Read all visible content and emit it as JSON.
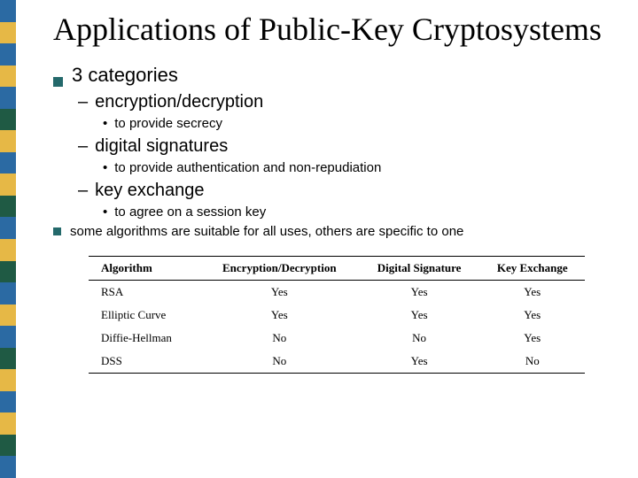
{
  "stripes": [
    "#2b6aa3",
    "#e6b846",
    "#2b6aa3",
    "#e6b846",
    "#2b6aa3",
    "#1f5a44",
    "#e6b846",
    "#2b6aa3",
    "#e6b846",
    "#1f5a44",
    "#2b6aa3",
    "#e6b846",
    "#1f5a44",
    "#2b6aa3",
    "#e6b846",
    "#2b6aa3",
    "#1f5a44",
    "#e6b846",
    "#2b6aa3",
    "#e6b846",
    "#1f5a44",
    "#2b6aa3"
  ],
  "title": "Applications of Public-Key Cryptosystems",
  "b1": "3 categories",
  "d1": "encryption/decryption",
  "p1": "to provide secrecy",
  "d2": "digital signatures",
  "p2": "to provide authentication and non-repudiation",
  "d3": "key exchange",
  "p3": "to agree on a session key",
  "b2": "some algorithms are suitable for all uses, others are specific to one",
  "table": {
    "headers": [
      "Algorithm",
      "Encryption/Decryption",
      "Digital Signature",
      "Key Exchange"
    ],
    "rows": [
      [
        "RSA",
        "Yes",
        "Yes",
        "Yes"
      ],
      [
        "Elliptic Curve",
        "Yes",
        "Yes",
        "Yes"
      ],
      [
        "Diffie-Hellman",
        "No",
        "No",
        "Yes"
      ],
      [
        "DSS",
        "No",
        "Yes",
        "No"
      ]
    ]
  }
}
